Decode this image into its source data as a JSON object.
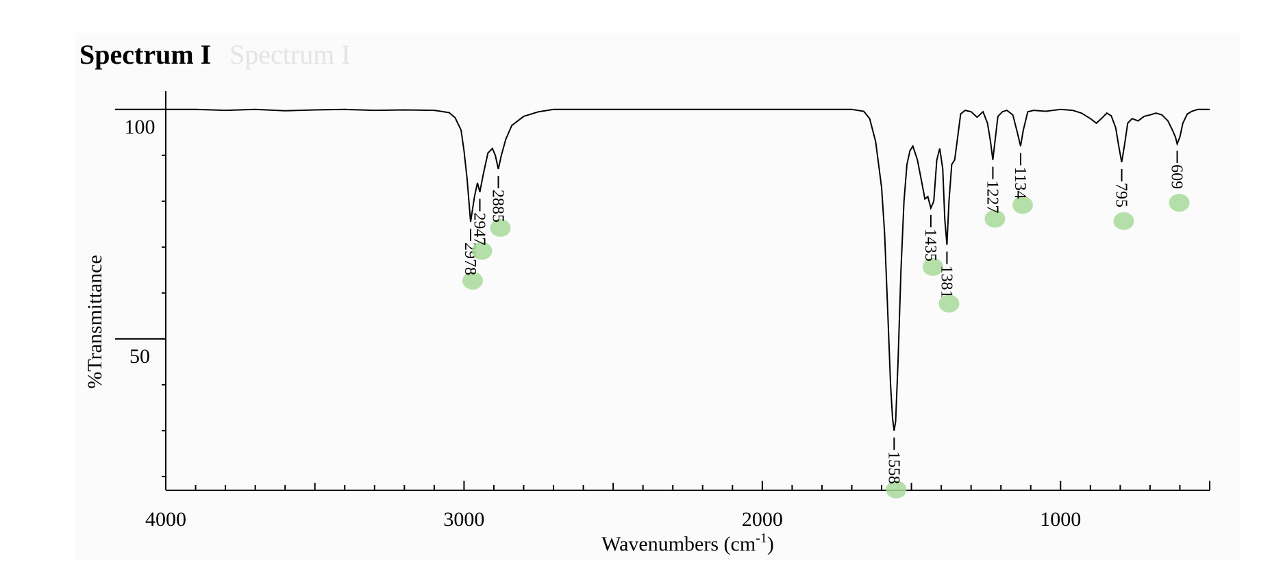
{
  "title": "Spectrum I",
  "title_ghost": "Spectrum I",
  "chart_data": {
    "type": "line",
    "title": "Spectrum I",
    "xlabel": "Wavenumbers (cm",
    "xlabel_sup": "-1",
    "xlabel_end": ")",
    "ylabel": "%Transmittance",
    "xlim": [
      4000,
      500
    ],
    "x_reversed": true,
    "ylim": [
      17,
      104
    ],
    "x_ticks": [
      "4000",
      "3000",
      "2000",
      "1000"
    ],
    "y_ticks": [
      "100",
      "50"
    ],
    "grid": false,
    "highlight_color": "#a8d99a",
    "series": [
      {
        "x": [
          4000,
          3900,
          3800,
          3700,
          3600,
          3500,
          3400,
          3300,
          3200,
          3100,
          3050,
          3030,
          3010,
          3000,
          2990,
          2978,
          2965,
          2955,
          2947,
          2935,
          2920,
          2905,
          2895,
          2885,
          2875,
          2860,
          2840,
          2800,
          2750,
          2700,
          2600,
          2400,
          2200,
          2000,
          1800,
          1700,
          1660,
          1640,
          1620,
          1600,
          1590,
          1580,
          1570,
          1563,
          1558,
          1553,
          1545,
          1535,
          1525,
          1515,
          1505,
          1495,
          1480,
          1465,
          1455,
          1445,
          1435,
          1425,
          1415,
          1405,
          1395,
          1388,
          1381,
          1374,
          1365,
          1355,
          1345,
          1335,
          1320,
          1300,
          1280,
          1260,
          1245,
          1235,
          1227,
          1220,
          1210,
          1195,
          1180,
          1160,
          1145,
          1134,
          1125,
          1110,
          1090,
          1050,
          1000,
          960,
          930,
          900,
          880,
          860,
          845,
          830,
          815,
          805,
          795,
          785,
          775,
          760,
          740,
          720,
          700,
          680,
          660,
          640,
          625,
          615,
          609,
          600,
          590,
          575,
          560,
          540,
          520,
          500
        ],
        "y": [
          100,
          100,
          99.8,
          100,
          99.7,
          99.9,
          100,
          99.8,
          99.9,
          99.8,
          99.3,
          98.2,
          95.5,
          91,
          85,
          75.5,
          81,
          84,
          82,
          86,
          90.5,
          91.5,
          90,
          87,
          90,
          93.5,
          96.5,
          98.5,
          99.5,
          100,
          100,
          100,
          100,
          100,
          100,
          100,
          99.6,
          98,
          93,
          83,
          73,
          57,
          40,
          32.5,
          30,
          32,
          45,
          65,
          80,
          88,
          91,
          92,
          89,
          84,
          80.5,
          81,
          78.5,
          80,
          89,
          91.5,
          87,
          76,
          70.5,
          80,
          88,
          89,
          94,
          99,
          99.8,
          99.5,
          98.3,
          99.5,
          97,
          93,
          89,
          93,
          98.5,
          99.5,
          99.8,
          98.8,
          95,
          92,
          95.5,
          99.5,
          99.8,
          99.6,
          100,
          99.8,
          99.2,
          98,
          97,
          98.2,
          99.2,
          98.6,
          96,
          92,
          88.5,
          92.5,
          97,
          98,
          97.5,
          98.5,
          98.8,
          99.2,
          98.8,
          97.5,
          95.5,
          94,
          92.5,
          94,
          97,
          99,
          99.6,
          100,
          100,
          100
        ]
      }
    ],
    "annotations": [
      {
        "label": "2978",
        "x": 2978,
        "y": 75.5
      },
      {
        "label": "2947",
        "x": 2947,
        "y": 82
      },
      {
        "label": "2885",
        "x": 2885,
        "y": 87
      },
      {
        "label": "1558",
        "x": 1558,
        "y": 30
      },
      {
        "label": "1435",
        "x": 1435,
        "y": 78.5
      },
      {
        "label": "1381",
        "x": 1381,
        "y": 70.5
      },
      {
        "label": "1227",
        "x": 1227,
        "y": 89
      },
      {
        "label": "1134",
        "x": 1134,
        "y": 92
      },
      {
        "label": "795",
        "x": 795,
        "y": 88.5
      },
      {
        "label": "609",
        "x": 609,
        "y": 92.5
      }
    ]
  }
}
